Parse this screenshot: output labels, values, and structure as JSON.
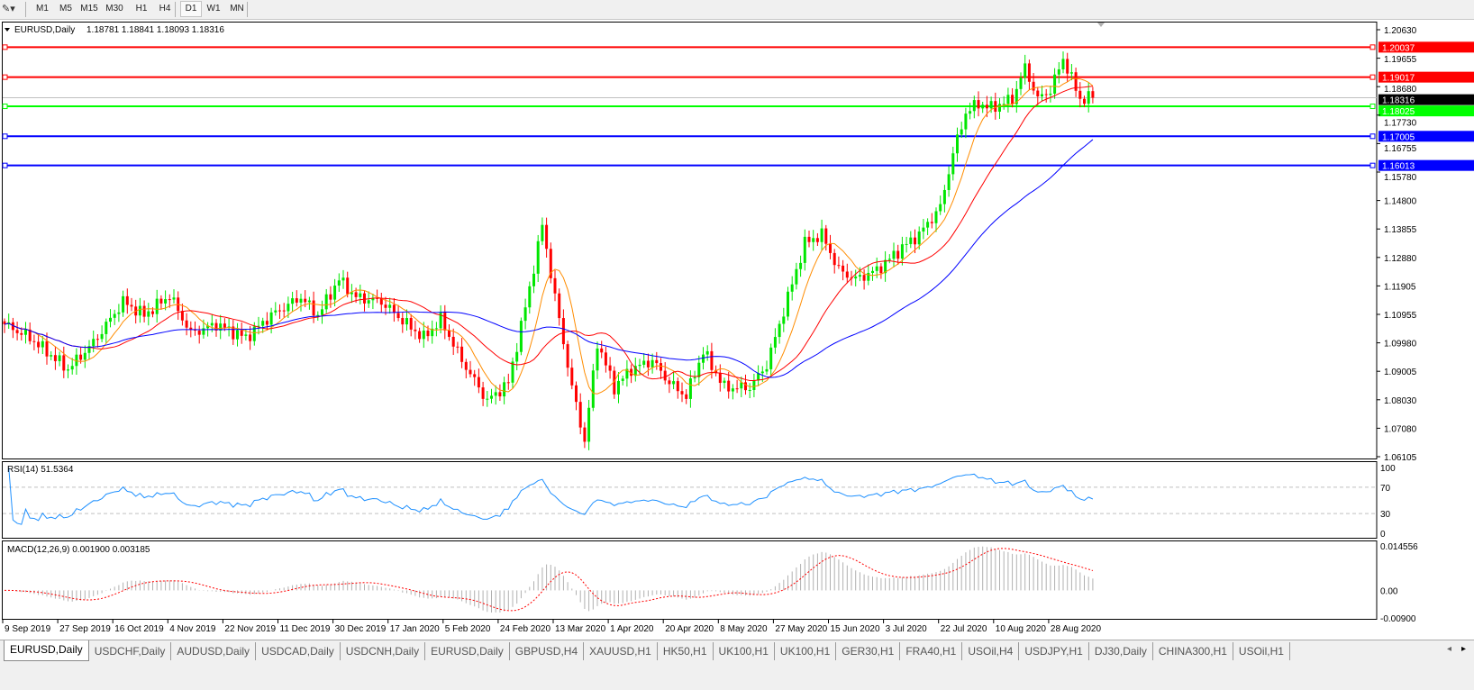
{
  "toolbar": {
    "timeframes": [
      "M1",
      "M5",
      "M15",
      "M30",
      "H1",
      "H4",
      "D1",
      "W1",
      "MN"
    ],
    "active_timeframe": "D1"
  },
  "chart_header": {
    "symbol": "EURUSD,Daily",
    "ohlc": "1.18781 1.18841 1.18093 1.18316"
  },
  "colors": {
    "bull_candle": "#00e600",
    "bear_candle": "#ff0000",
    "ma_fast": "#ff8c00",
    "ma_mid": "#ff0000",
    "ma_slow": "#0000ff",
    "rsi_line": "#1e90ff",
    "macd_hist": "#b0b0b0",
    "macd_signal": "#ff0000"
  },
  "chart_data": [
    {
      "type": "candlestick",
      "title": "EURUSD,Daily",
      "y_ticks": [
        "1.20630",
        "1.19655",
        "1.18680",
        "1.17730",
        "1.16755",
        "1.15780",
        "1.14800",
        "1.13855",
        "1.12880",
        "1.11905",
        "1.10955",
        "1.09980",
        "1.09005",
        "1.08030",
        "1.07080",
        "1.06105"
      ],
      "ylim": [
        1.06105,
        1.2063
      ],
      "x_ticks": [
        "9 Sep 2019",
        "27 Sep 2019",
        "16 Oct 2019",
        "4 Nov 2019",
        "22 Nov 2019",
        "11 Dec 2019",
        "30 Dec 2019",
        "17 Jan 2020",
        "5 Feb 2020",
        "24 Feb 2020",
        "13 Mar 2020",
        "1 Apr 2020",
        "20 Apr 2020",
        "8 May 2020",
        "27 May 2020",
        "15 Jun 2020",
        "3 Jul 2020",
        "22 Jul 2020",
        "10 Aug 2020",
        "28 Aug 2020"
      ],
      "close_keypoints": [
        {
          "bar": 0,
          "close": 1.1061
        },
        {
          "bar": 6,
          "close": 1.1015
        },
        {
          "bar": 15,
          "close": 1.0908
        },
        {
          "bar": 21,
          "close": 1.0999
        },
        {
          "bar": 28,
          "close": 1.1138
        },
        {
          "bar": 33,
          "close": 1.1092
        },
        {
          "bar": 39,
          "close": 1.1159
        },
        {
          "bar": 44,
          "close": 1.103
        },
        {
          "bar": 50,
          "close": 1.1061
        },
        {
          "bar": 57,
          "close": 1.1015
        },
        {
          "bar": 63,
          "close": 1.1092
        },
        {
          "bar": 70,
          "close": 1.1153
        },
        {
          "bar": 74,
          "close": 1.1092
        },
        {
          "bar": 79,
          "close": 1.1214
        },
        {
          "bar": 83,
          "close": 1.1153
        },
        {
          "bar": 89,
          "close": 1.1138
        },
        {
          "bar": 95,
          "close": 1.1061
        },
        {
          "bar": 99,
          "close": 1.1015
        },
        {
          "bar": 103,
          "close": 1.1077
        },
        {
          "bar": 108,
          "close": 1.0938
        },
        {
          "bar": 114,
          "close": 1.08
        },
        {
          "bar": 119,
          "close": 1.0862
        },
        {
          "bar": 124,
          "close": 1.1184
        },
        {
          "bar": 127,
          "close": 1.1398
        },
        {
          "bar": 130,
          "close": 1.1153
        },
        {
          "bar": 134,
          "close": 1.0846
        },
        {
          "bar": 137,
          "close": 1.0663
        },
        {
          "bar": 140,
          "close": 1.0999
        },
        {
          "bar": 144,
          "close": 1.0846
        },
        {
          "bar": 148,
          "close": 1.0908
        },
        {
          "bar": 153,
          "close": 1.0938
        },
        {
          "bar": 157,
          "close": 1.0862
        },
        {
          "bar": 161,
          "close": 1.0816
        },
        {
          "bar": 165,
          "close": 1.0969
        },
        {
          "bar": 170,
          "close": 1.0846
        },
        {
          "bar": 176,
          "close": 1.0846
        },
        {
          "bar": 180,
          "close": 1.0923
        },
        {
          "bar": 185,
          "close": 1.1153
        },
        {
          "bar": 189,
          "close": 1.1337
        },
        {
          "bar": 193,
          "close": 1.1367
        },
        {
          "bar": 197,
          "close": 1.1245
        },
        {
          "bar": 201,
          "close": 1.1214
        },
        {
          "bar": 206,
          "close": 1.1245
        },
        {
          "bar": 212,
          "close": 1.1322
        },
        {
          "bar": 216,
          "close": 1.1367
        },
        {
          "bar": 221,
          "close": 1.1459
        },
        {
          "bar": 224,
          "close": 1.1643
        },
        {
          "bar": 227,
          "close": 1.1781
        },
        {
          "bar": 230,
          "close": 1.1812
        },
        {
          "bar": 233,
          "close": 1.1797
        },
        {
          "bar": 238,
          "close": 1.1827
        },
        {
          "bar": 241,
          "close": 1.1934
        },
        {
          "bar": 244,
          "close": 1.1827
        },
        {
          "bar": 247,
          "close": 1.1858
        },
        {
          "bar": 250,
          "close": 1.1965
        },
        {
          "bar": 254,
          "close": 1.1827
        },
        {
          "bar": 257,
          "close": 1.18316
        }
      ],
      "last_price": "1.18316",
      "horizontal_lines": [
        {
          "price": "1.20037",
          "color": "#ff0000"
        },
        {
          "price": "1.19017",
          "color": "#ff0000"
        },
        {
          "price": "1.18025",
          "color": "#00ff00"
        },
        {
          "price": "1.17005",
          "color": "#0000ff"
        },
        {
          "price": "1.16013",
          "color": "#0000ff"
        }
      ],
      "moving_averages": [
        "fast",
        "mid",
        "slow"
      ]
    },
    {
      "type": "line",
      "title": "RSI(14) 51.5364",
      "y_ticks": [
        "100",
        "70",
        "30",
        "0"
      ],
      "ylim": [
        0,
        100
      ],
      "levels": [
        70,
        30
      ]
    },
    {
      "type": "bar",
      "title": "MACD(12,26,9) 0.001900 0.003185",
      "y_ticks": [
        "0.014556",
        "0.00",
        "-0.00900"
      ],
      "ylim": [
        -0.009,
        0.014556
      ]
    }
  ],
  "tabs": [
    {
      "label": "EURUSD,Daily",
      "active": true
    },
    {
      "label": "USDCHF,Daily"
    },
    {
      "label": "AUDUSD,Daily"
    },
    {
      "label": "USDCAD,Daily"
    },
    {
      "label": "USDCNH,Daily"
    },
    {
      "label": "EURUSD,Daily"
    },
    {
      "label": "GBPUSD,H4"
    },
    {
      "label": "XAUUSD,H1"
    },
    {
      "label": "HK50,H1"
    },
    {
      "label": "UK100,H1"
    },
    {
      "label": "UK100,H1"
    },
    {
      "label": "GER30,H1"
    },
    {
      "label": "FRA40,H1"
    },
    {
      "label": "USOil,H4"
    },
    {
      "label": "USDJPY,H1"
    },
    {
      "label": "DJ30,Daily"
    },
    {
      "label": "CHINA300,H1"
    },
    {
      "label": "USOil,H1"
    }
  ]
}
